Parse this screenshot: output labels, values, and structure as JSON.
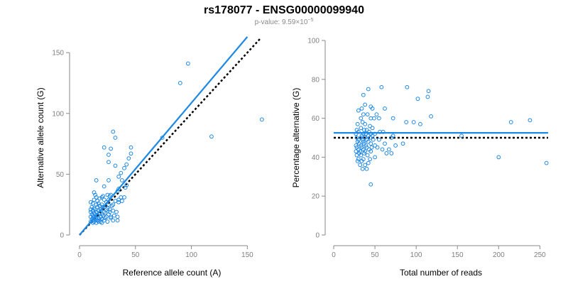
{
  "figure": {
    "title": "rs178077 - ENSG00000099940",
    "subtitle_prefix": "p-value: 9.59×10",
    "subtitle_exponent": "−5"
  },
  "colors": {
    "series": "#1e88e5",
    "reference": "#000000",
    "axis": "#8a8a8a"
  },
  "chart_data": [
    {
      "type": "scatter",
      "xlabel": "Reference allele count (A)",
      "ylabel": "Alternative allele count (G)",
      "xlim": [
        0,
        165
      ],
      "ylim": [
        0,
        160
      ],
      "xticks": [
        0,
        50,
        100,
        150
      ],
      "yticks": [
        0,
        50,
        100,
        150
      ],
      "points": [
        [
          97,
          141
        ],
        [
          90,
          125
        ],
        [
          163,
          95
        ],
        [
          118,
          81
        ],
        [
          74,
          80
        ],
        [
          30,
          85
        ],
        [
          32,
          80
        ],
        [
          28,
          71
        ],
        [
          22,
          72
        ],
        [
          46,
          72
        ],
        [
          46,
          67
        ],
        [
          26,
          66
        ],
        [
          44,
          63
        ],
        [
          26,
          60
        ],
        [
          32,
          57
        ],
        [
          42,
          58
        ],
        [
          40,
          55
        ],
        [
          37,
          51
        ],
        [
          35,
          48
        ],
        [
          38,
          45
        ],
        [
          15,
          45
        ],
        [
          26,
          45
        ],
        [
          22,
          40
        ],
        [
          41,
          39
        ],
        [
          42,
          41
        ],
        [
          35,
          38
        ],
        [
          34,
          36
        ],
        [
          28,
          33
        ],
        [
          37,
          31
        ],
        [
          40,
          31
        ],
        [
          35,
          29
        ],
        [
          32,
          28
        ],
        [
          38,
          28
        ],
        [
          35,
          27
        ],
        [
          13,
          35
        ],
        [
          14,
          33
        ],
        [
          15,
          31
        ],
        [
          20,
          31
        ],
        [
          21,
          32
        ],
        [
          25,
          33
        ],
        [
          27,
          32
        ],
        [
          13,
          29
        ],
        [
          16,
          28
        ],
        [
          18,
          30
        ],
        [
          22,
          29
        ],
        [
          26,
          29
        ],
        [
          10,
          27
        ],
        [
          12,
          26
        ],
        [
          15,
          25
        ],
        [
          17,
          26
        ],
        [
          20,
          25
        ],
        [
          24,
          27
        ],
        [
          11,
          23
        ],
        [
          13,
          22
        ],
        [
          16,
          23
        ],
        [
          18,
          24
        ],
        [
          21,
          23
        ],
        [
          25,
          22
        ],
        [
          10,
          21
        ],
        [
          12,
          20
        ],
        [
          14,
          21
        ],
        [
          17,
          20
        ],
        [
          19,
          21
        ],
        [
          22,
          19
        ],
        [
          27,
          21
        ],
        [
          10,
          19
        ],
        [
          13,
          18
        ],
        [
          15,
          19
        ],
        [
          18,
          18
        ],
        [
          20,
          17
        ],
        [
          23,
          18
        ],
        [
          26,
          17
        ],
        [
          11,
          17
        ],
        [
          12,
          16
        ],
        [
          14,
          17
        ],
        [
          16,
          16
        ],
        [
          19,
          15
        ],
        [
          21,
          16
        ],
        [
          24,
          15
        ],
        [
          10,
          15
        ],
        [
          12,
          14
        ],
        [
          13,
          15
        ],
        [
          15,
          14
        ],
        [
          17,
          14
        ],
        [
          20,
          13
        ],
        [
          23,
          14
        ],
        [
          28,
          14
        ],
        [
          11,
          13
        ],
        [
          12,
          12
        ],
        [
          14,
          13
        ],
        [
          16,
          12
        ],
        [
          18,
          12
        ],
        [
          19,
          11
        ],
        [
          22,
          12
        ],
        [
          10,
          11
        ],
        [
          12,
          10
        ],
        [
          13,
          11
        ],
        [
          15,
          10
        ],
        [
          17,
          11
        ],
        [
          20,
          10
        ],
        [
          25,
          11
        ],
        [
          30,
          12
        ],
        [
          26,
          25
        ],
        [
          29,
          24
        ],
        [
          24,
          21
        ],
        [
          27,
          19
        ],
        [
          30,
          20
        ],
        [
          33,
          19
        ],
        [
          31,
          16
        ],
        [
          28,
          15
        ],
        [
          34,
          15
        ],
        [
          30,
          25
        ],
        [
          34,
          12
        ]
      ],
      "fit_line": {
        "from": [
          0,
          0
        ],
        "to": [
          150,
          163
        ]
      },
      "reference_line": {
        "from": [
          0,
          0
        ],
        "to": [
          162,
          162
        ]
      }
    },
    {
      "type": "scatter",
      "xlabel": "Total number of reads",
      "ylabel": "Percentage alternative (G)",
      "xlim": [
        0,
        260
      ],
      "ylim": [
        0,
        100
      ],
      "xticks": [
        0,
        50,
        100,
        150,
        200,
        250
      ],
      "yticks": [
        0,
        20,
        40,
        60,
        80,
        100
      ],
      "points": [
        [
          89,
          76
        ],
        [
          58,
          76
        ],
        [
          42,
          75
        ],
        [
          115,
          74
        ],
        [
          36,
          72
        ],
        [
          114,
          71
        ],
        [
          102,
          70
        ],
        [
          38,
          67
        ],
        [
          45,
          66
        ],
        [
          34,
          65
        ],
        [
          47,
          65
        ],
        [
          62,
          65
        ],
        [
          30,
          64
        ],
        [
          36,
          62
        ],
        [
          41,
          62
        ],
        [
          52,
          62
        ],
        [
          118,
          61
        ],
        [
          33,
          60
        ],
        [
          45,
          60
        ],
        [
          49,
          60
        ],
        [
          55,
          60
        ],
        [
          72,
          60
        ],
        [
          97,
          58
        ],
        [
          88,
          58
        ],
        [
          35,
          58
        ],
        [
          105,
          57
        ],
        [
          38,
          57
        ],
        [
          29,
          57
        ],
        [
          44,
          56
        ],
        [
          47,
          55
        ],
        [
          33,
          55
        ],
        [
          37,
          54
        ],
        [
          40,
          54
        ],
        [
          28,
          54
        ],
        [
          43,
          53
        ],
        [
          56,
          53
        ],
        [
          30,
          53
        ],
        [
          36,
          52
        ],
        [
          39,
          52
        ],
        [
          45,
          52
        ],
        [
          50,
          52
        ],
        [
          27,
          52
        ],
        [
          34,
          51
        ],
        [
          42,
          51
        ],
        [
          47,
          51
        ],
        [
          33,
          50
        ],
        [
          38,
          50
        ],
        [
          28,
          50
        ],
        [
          44,
          50
        ],
        [
          72,
          51
        ],
        [
          70,
          50
        ],
        [
          30,
          49
        ],
        [
          35,
          49
        ],
        [
          40,
          49
        ],
        [
          48,
          49
        ],
        [
          29,
          48
        ],
        [
          36,
          48
        ],
        [
          42,
          48
        ],
        [
          31,
          47
        ],
        [
          37,
          47
        ],
        [
          45,
          47
        ],
        [
          62,
          47
        ],
        [
          27,
          46
        ],
        [
          33,
          46
        ],
        [
          39,
          46
        ],
        [
          50,
          46
        ],
        [
          75,
          46
        ],
        [
          28,
          45
        ],
        [
          34,
          45
        ],
        [
          40,
          45
        ],
        [
          46,
          45
        ],
        [
          53,
          45
        ],
        [
          30,
          44
        ],
        [
          36,
          44
        ],
        [
          43,
          44
        ],
        [
          59,
          44
        ],
        [
          27,
          43
        ],
        [
          32,
          43
        ],
        [
          38,
          43
        ],
        [
          45,
          43
        ],
        [
          31,
          42
        ],
        [
          37,
          42
        ],
        [
          64,
          42
        ],
        [
          28,
          41
        ],
        [
          33,
          41
        ],
        [
          41,
          41
        ],
        [
          50,
          40
        ],
        [
          30,
          39
        ],
        [
          36,
          39
        ],
        [
          44,
          39
        ],
        [
          29,
          38
        ],
        [
          34,
          38
        ],
        [
          42,
          37
        ],
        [
          32,
          36
        ],
        [
          38,
          36
        ],
        [
          35,
          34
        ],
        [
          40,
          34
        ],
        [
          45,
          26
        ],
        [
          215,
          58
        ],
        [
          238,
          59
        ],
        [
          155,
          51
        ],
        [
          200,
          40
        ],
        [
          258,
          37
        ],
        [
          84,
          47
        ],
        [
          67,
          44
        ],
        [
          70,
          42
        ],
        [
          55,
          49
        ],
        [
          60,
          53
        ]
      ],
      "fit_line": {
        "from": [
          0,
          52.5
        ],
        "to": [
          260,
          52.5
        ]
      },
      "reference_line": {
        "from": [
          0,
          50
        ],
        "to": [
          260,
          50
        ]
      }
    }
  ]
}
